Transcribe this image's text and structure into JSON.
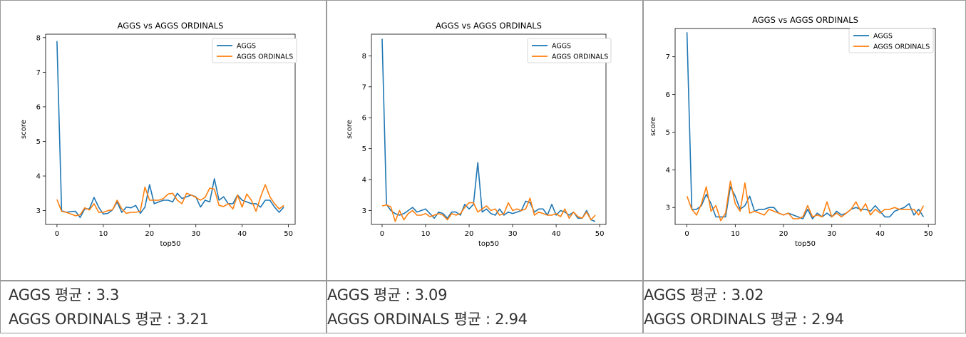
{
  "colors": {
    "aggs": "#1f77b4",
    "ordinals": "#ff7f0e",
    "border": "#9a9a9a"
  },
  "captions": [
    {
      "aggs_avg": "AGGS 평균 : 3.3",
      "ordinals_avg": "AGGS ORDINALS 평균 : 3.21"
    },
    {
      "aggs_avg": "AGGS 평균 : 3.09",
      "ordinals_avg": "AGGS ORDINALS 평균 : 2.94"
    },
    {
      "aggs_avg": "AGGS 평균 : 3.02",
      "ordinals_avg": "AGGS ORDINALS 평균 : 2.94"
    }
  ],
  "chart_data": [
    {
      "type": "line",
      "title": "AGGS vs AGGS ORDINALS",
      "xlabel": "top50",
      "ylabel": "score",
      "xlim": [
        0,
        49
      ],
      "ylim": [
        2.6,
        8.1
      ],
      "xticks": [
        0,
        10,
        20,
        30,
        40,
        50
      ],
      "yticks": [
        3,
        4,
        5,
        6,
        7,
        8
      ],
      "legend": "top-right",
      "series": [
        {
          "name": "AGGS",
          "color": "#1f77b4",
          "values": [
            7.9,
            3.0,
            2.95,
            2.97,
            2.98,
            2.8,
            3.05,
            3.05,
            3.38,
            3.1,
            2.9,
            2.92,
            3.02,
            3.25,
            2.95,
            3.1,
            3.08,
            3.15,
            2.92,
            3.1,
            3.75,
            3.2,
            3.25,
            3.3,
            3.3,
            3.25,
            3.5,
            3.35,
            3.4,
            3.45,
            3.4,
            3.1,
            3.3,
            3.25,
            3.92,
            3.3,
            3.4,
            3.2,
            3.2,
            3.45,
            3.3,
            3.25,
            3.2,
            3.2,
            3.1,
            3.3,
            3.3,
            3.1,
            2.95,
            3.1
          ]
        },
        {
          "name": "AGGS ORDINALS",
          "color": "#ff7f0e",
          "values": [
            3.32,
            2.98,
            2.95,
            2.9,
            2.85,
            2.88,
            3.08,
            3.02,
            3.2,
            2.95,
            2.95,
            3.0,
            3.02,
            3.3,
            3.05,
            2.92,
            2.95,
            2.95,
            2.98,
            3.68,
            3.3,
            3.3,
            3.3,
            3.35,
            3.48,
            3.5,
            3.3,
            3.2,
            3.5,
            3.45,
            3.38,
            3.3,
            3.38,
            3.65,
            3.62,
            3.15,
            3.12,
            3.2,
            3.05,
            3.45,
            3.1,
            3.48,
            3.3,
            2.98,
            3.4,
            3.75,
            3.4,
            3.2,
            3.05,
            3.15
          ]
        }
      ]
    },
    {
      "type": "line",
      "title": "AGGS vs AGGS ORDINALS",
      "xlabel": "top50",
      "ylabel": "score",
      "xlim": [
        0,
        49
      ],
      "ylim": [
        2.55,
        8.7
      ],
      "xticks": [
        0,
        10,
        20,
        30,
        40,
        50
      ],
      "yticks": [
        3,
        4,
        5,
        6,
        7,
        8
      ],
      "legend": "top-right",
      "series": [
        {
          "name": "AGGS",
          "color": "#1f77b4",
          "values": [
            8.55,
            3.2,
            3.0,
            2.9,
            2.85,
            2.9,
            3.0,
            3.1,
            2.95,
            3.0,
            3.05,
            2.9,
            2.75,
            2.95,
            2.9,
            2.75,
            2.95,
            2.95,
            2.85,
            3.2,
            3.05,
            3.2,
            4.55,
            2.95,
            3.05,
            2.9,
            2.85,
            3.05,
            2.85,
            2.95,
            2.9,
            2.95,
            3.0,
            3.3,
            3.25,
            2.95,
            3.05,
            3.05,
            2.85,
            3.2,
            2.85,
            3.0,
            2.95,
            2.85,
            2.95,
            2.75,
            2.75,
            3.0,
            2.7,
            2.65
          ]
        },
        {
          "name": "AGGS ORDINALS",
          "color": "#ff7f0e",
          "values": [
            3.15,
            3.18,
            3.12,
            2.65,
            3.0,
            2.7,
            2.9,
            3.0,
            2.85,
            2.85,
            2.9,
            2.8,
            2.85,
            2.9,
            2.85,
            2.7,
            2.9,
            2.85,
            2.9,
            3.1,
            3.25,
            3.25,
            2.95,
            3.05,
            3.15,
            3.0,
            3.05,
            2.85,
            2.9,
            3.25,
            3.0,
            3.05,
            3.0,
            3.05,
            3.4,
            2.85,
            2.95,
            2.9,
            2.85,
            2.85,
            2.9,
            2.8,
            3.05,
            2.75,
            2.95,
            2.8,
            2.75,
            2.95,
            2.7,
            2.85
          ]
        }
      ]
    },
    {
      "type": "line",
      "title": "AGGS vs AGGS ORDINALS",
      "xlabel": "top50",
      "ylabel": "score",
      "xlim": [
        0,
        49
      ],
      "ylim": [
        2.55,
        7.75
      ],
      "xticks": [
        0,
        10,
        20,
        30,
        40,
        50
      ],
      "yticks": [
        3,
        4,
        5,
        6,
        7
      ],
      "legend": "top-right",
      "series": [
        {
          "name": "AGGS",
          "color": "#1f77b4",
          "values": [
            7.65,
            2.95,
            2.95,
            3.05,
            3.35,
            3.1,
            2.75,
            2.75,
            2.75,
            3.55,
            3.3,
            2.95,
            3.05,
            3.3,
            2.9,
            2.95,
            2.95,
            3.0,
            3.0,
            2.85,
            2.8,
            2.85,
            2.8,
            2.75,
            2.7,
            2.95,
            2.7,
            2.85,
            2.75,
            2.85,
            2.75,
            2.9,
            2.8,
            2.85,
            2.95,
            3.0,
            2.95,
            2.95,
            2.9,
            3.05,
            2.9,
            2.75,
            2.75,
            2.9,
            2.95,
            3.0,
            3.1,
            2.8,
            2.95,
            2.75
          ]
        },
        {
          "name": "AGGS ORDINALS",
          "color": "#ff7f0e",
          "values": [
            3.3,
            2.95,
            2.8,
            3.1,
            3.55,
            2.9,
            3.05,
            2.65,
            2.85,
            3.7,
            3.1,
            2.9,
            3.65,
            2.85,
            2.9,
            2.85,
            2.8,
            2.95,
            2.9,
            2.85,
            2.8,
            2.85,
            2.7,
            2.7,
            2.75,
            3.05,
            2.75,
            2.8,
            2.75,
            3.15,
            2.75,
            2.85,
            2.75,
            2.85,
            2.95,
            3.15,
            2.9,
            3.1,
            2.8,
            2.95,
            2.85,
            2.95,
            2.95,
            3.0,
            2.95,
            2.95,
            2.95,
            2.95,
            2.8,
            3.05
          ]
        }
      ]
    }
  ]
}
